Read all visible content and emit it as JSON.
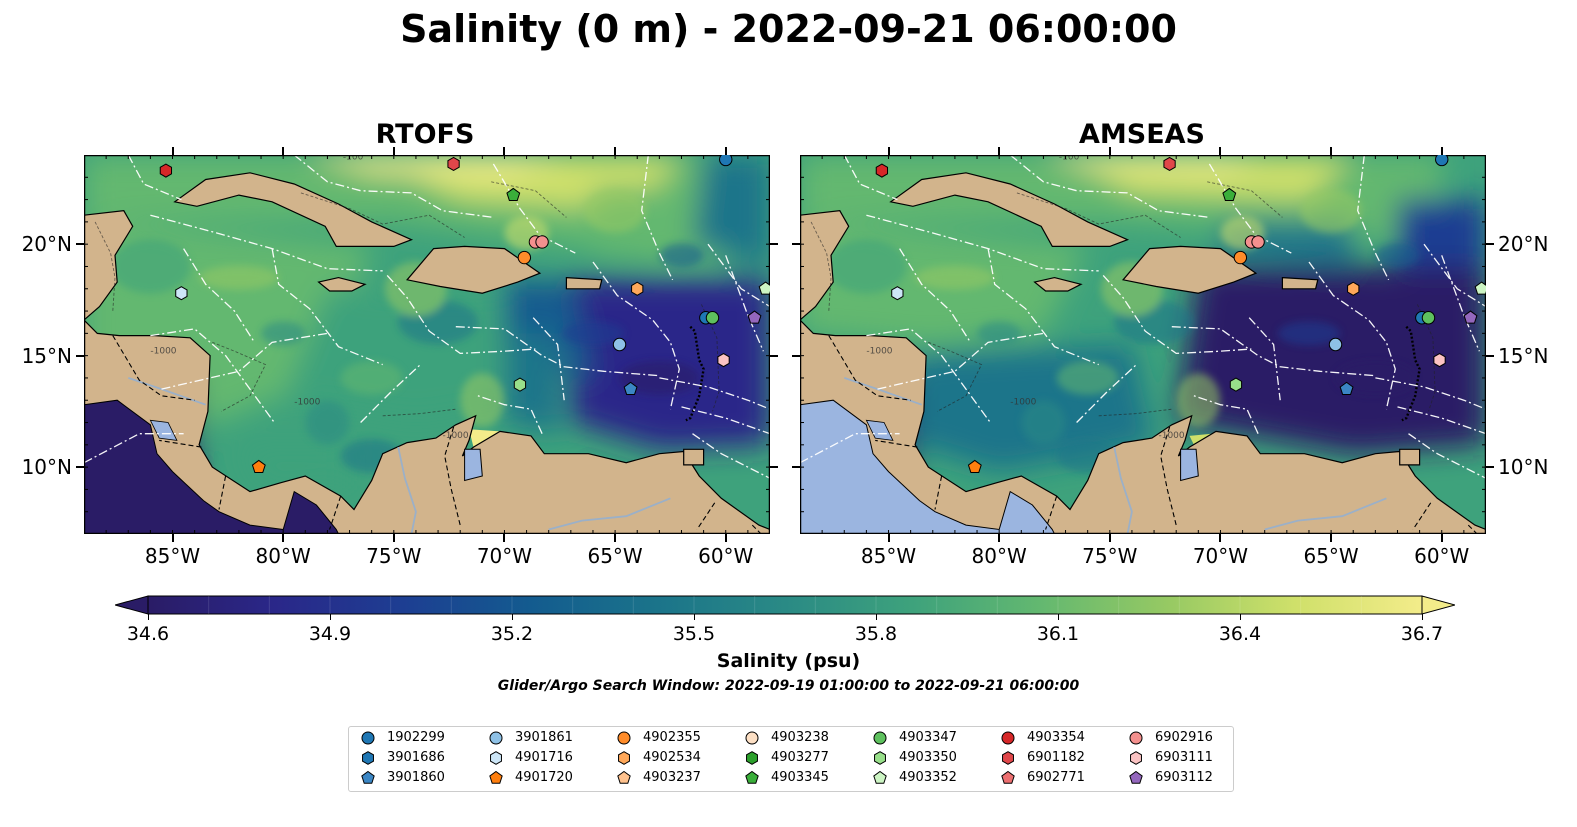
{
  "title": "Salinity (0 m) - 2022-09-21 06:00:00",
  "panels": [
    {
      "title": "RTOFS"
    },
    {
      "title": "AMSEAS"
    }
  ],
  "map": {
    "lon_range": [
      -89,
      -58
    ],
    "lat_range": [
      7,
      24
    ],
    "lon_ticks": [
      "85°W",
      "80°W",
      "75°W",
      "70°W",
      "65°W",
      "60°W"
    ],
    "lon_tick_values": [
      -85,
      -80,
      -75,
      -70,
      -65,
      -60
    ],
    "lat_ticks": [
      "20°N",
      "15°N",
      "10°N"
    ],
    "lat_tick_values": [
      20,
      15,
      10
    ],
    "contour_labels": [
      "-100",
      "-1000"
    ],
    "land_color": "#d2b48c",
    "lake_color": "#9bb5e0"
  },
  "colorbar": {
    "label": "Salinity (psu)",
    "ticks": [
      "34.6",
      "34.9",
      "35.2",
      "35.5",
      "35.8",
      "36.1",
      "36.4",
      "36.7"
    ],
    "range": [
      34.6,
      36.7
    ],
    "extend": "both",
    "colormap": "haline",
    "colors": [
      "#2a1c66",
      "#2a2789",
      "#1d3e92",
      "#135b8f",
      "#1b748a",
      "#2a8a85",
      "#3ea27c",
      "#63b870",
      "#96c963",
      "#cfe06a",
      "#f3ec8a"
    ]
  },
  "search_window": "Glider/Argo Search Window: 2022-09-19 01:00:00 to 2022-09-21 06:00:00",
  "legend": {
    "columns": [
      [
        {
          "id": "1902299",
          "marker": "circle",
          "color": "#1f77b4"
        },
        {
          "id": "3901686",
          "marker": "hexagon",
          "color": "#1f77b4"
        },
        {
          "id": "3901860",
          "marker": "pentagon",
          "color": "#3b86c4"
        }
      ],
      [
        {
          "id": "3901861",
          "marker": "circle",
          "color": "#8ec1e6"
        },
        {
          "id": "4901716",
          "marker": "hexagon",
          "color": "#cde6f7"
        },
        {
          "id": "4901720",
          "marker": "pentagon",
          "color": "#ff7f0e"
        }
      ],
      [
        {
          "id": "4902355",
          "marker": "circle",
          "color": "#ff8c2a"
        },
        {
          "id": "4902534",
          "marker": "hexagon",
          "color": "#ffa85a"
        },
        {
          "id": "4903237",
          "marker": "pentagon",
          "color": "#ffc28e"
        }
      ],
      [
        {
          "id": "4903238",
          "marker": "circle",
          "color": "#fde0c5"
        },
        {
          "id": "4903277",
          "marker": "hexagon",
          "color": "#2ca02c"
        },
        {
          "id": "4903345",
          "marker": "pentagon",
          "color": "#3aae3a"
        }
      ],
      [
        {
          "id": "4903347",
          "marker": "circle",
          "color": "#5ec15e"
        },
        {
          "id": "4903350",
          "marker": "hexagon",
          "color": "#98df8a"
        },
        {
          "id": "4903352",
          "marker": "pentagon",
          "color": "#cdf5c4"
        }
      ],
      [
        {
          "id": "4903354",
          "marker": "circle",
          "color": "#d62728"
        },
        {
          "id": "6901182",
          "marker": "hexagon",
          "color": "#e0474a"
        },
        {
          "id": "6902771",
          "marker": "pentagon",
          "color": "#ec6f70"
        }
      ],
      [
        {
          "id": "6902916",
          "marker": "circle",
          "color": "#f4908e"
        },
        {
          "id": "6903111",
          "marker": "hexagon",
          "color": "#fbc3c3"
        },
        {
          "id": "6903112",
          "marker": "pentagon",
          "color": "#9467bd"
        }
      ]
    ]
  },
  "floats": [
    {
      "lon": -85.3,
      "lat": 23.3,
      "marker": "hexagon",
      "color": "#d62728"
    },
    {
      "lon": -72.3,
      "lat": 23.6,
      "marker": "hexagon",
      "color": "#e0474a"
    },
    {
      "lon": -60.0,
      "lat": 23.8,
      "marker": "circle",
      "color": "#1f77b4"
    },
    {
      "lon": -69.6,
      "lat": 22.2,
      "marker": "pentagon",
      "color": "#3aae3a"
    },
    {
      "lon": -68.6,
      "lat": 20.1,
      "marker": "circle",
      "color": "#f4908e"
    },
    {
      "lon": -68.3,
      "lat": 20.1,
      "marker": "circle",
      "color": "#f4908e"
    },
    {
      "lon": -69.1,
      "lat": 19.4,
      "marker": "circle",
      "color": "#ff8c2a"
    },
    {
      "lon": -84.6,
      "lat": 17.8,
      "marker": "hexagon",
      "color": "#cde6f7"
    },
    {
      "lon": -64.0,
      "lat": 18.0,
      "marker": "hexagon",
      "color": "#ffa85a"
    },
    {
      "lon": -58.2,
      "lat": 18.0,
      "marker": "pentagon",
      "color": "#cdf5c4"
    },
    {
      "lon": -60.9,
      "lat": 16.7,
      "marker": "circle",
      "color": "#1f77b4"
    },
    {
      "lon": -60.6,
      "lat": 16.7,
      "marker": "circle",
      "color": "#5ec15e"
    },
    {
      "lon": -58.7,
      "lat": 16.7,
      "marker": "pentagon",
      "color": "#9467bd"
    },
    {
      "lon": -64.8,
      "lat": 15.5,
      "marker": "circle",
      "color": "#8ec1e6"
    },
    {
      "lon": -60.1,
      "lat": 14.8,
      "marker": "hexagon",
      "color": "#fbc3c3"
    },
    {
      "lon": -69.3,
      "lat": 13.7,
      "marker": "hexagon",
      "color": "#98df8a"
    },
    {
      "lon": -64.3,
      "lat": 13.5,
      "marker": "pentagon",
      "color": "#3b86c4"
    },
    {
      "lon": -81.1,
      "lat": 10.0,
      "marker": "pentagon",
      "color": "#ff7f0e"
    }
  ]
}
